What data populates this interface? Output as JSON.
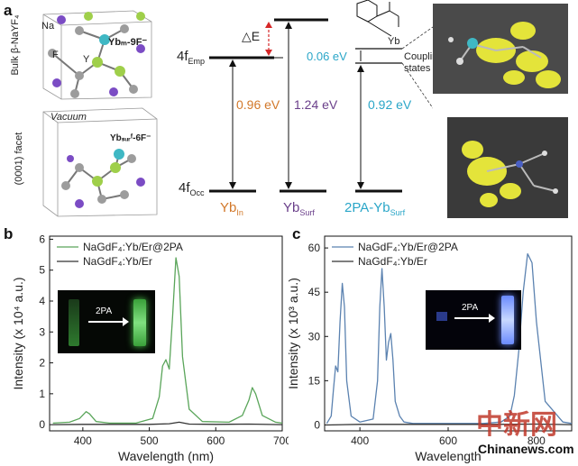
{
  "panel_a": {
    "letter": "a",
    "crystal_top": {
      "side_label": "Bulk β-NaYF₄",
      "na_label": "Na",
      "f_label": "F",
      "y_label": "Y",
      "yb_label": "Ybₘ-9F⁻"
    },
    "crystal_bottom": {
      "side_label": "(0001) facet",
      "vacuum_label": "Vacuum",
      "yb_label": "Ybₛᵤᵣᶠ-6F⁻"
    },
    "levels": {
      "emp_label": "4f",
      "emp_sub": "Emp",
      "occ_label": "4f",
      "occ_sub": "Occ",
      "delta_label": "△E",
      "gap_in": "0.96 eV",
      "gap_surf": "1.24 eV",
      "gap_2pa": "0.92 eV",
      "coupling_gap": "0.06 eV",
      "coupling_label_1": "Coupling",
      "coupling_label_2": "states",
      "molecule_yb": "Yb",
      "x_in": "Yb",
      "x_in_sub": "In",
      "x_surf": "Yb",
      "x_surf_sub": "Surf",
      "x_2pa": "2PA-Yb",
      "x_2pa_sub": "Surf"
    },
    "colors": {
      "in": "#d2782a",
      "surf": "#6a3f8a",
      "pa": "#2aa6c8",
      "delta_arrow": "#d62728"
    }
  },
  "panel_b": {
    "letter": "b",
    "inset_arrow_label": "2PA"
  },
  "panel_c": {
    "letter": "c",
    "inset_arrow_label": "2PA"
  },
  "watermark": {
    "cn": "中新网",
    "url": "Chinanews.com"
  },
  "chart_data": [
    {
      "type": "line",
      "panel": "b",
      "xlabel": "Wavelength (nm)",
      "ylabel": "Intensity (x 10⁴ a.u.)",
      "xlim": [
        350,
        700
      ],
      "ylim": [
        -0.2,
        6.1
      ],
      "xticks": [
        400,
        500,
        600,
        700
      ],
      "yticks": [
        0,
        1,
        2,
        3,
        4,
        5,
        6
      ],
      "legend": "top-left",
      "series": [
        {
          "name": "NaGdF₄:Yb/Er@2PA",
          "color": "#5aa55a",
          "x": [
            355,
            380,
            395,
            405,
            410,
            420,
            440,
            480,
            505,
            515,
            520,
            525,
            530,
            535,
            540,
            545,
            550,
            560,
            580,
            620,
            640,
            650,
            655,
            660,
            670,
            690,
            700
          ],
          "y": [
            0.05,
            0.08,
            0.2,
            0.42,
            0.35,
            0.1,
            0.05,
            0.05,
            0.2,
            0.9,
            1.9,
            2.1,
            1.8,
            3.5,
            5.4,
            4.8,
            2.2,
            0.5,
            0.1,
            0.08,
            0.3,
            0.8,
            1.2,
            1.0,
            0.3,
            0.08,
            0.05
          ]
        },
        {
          "name": "NaGdF₄:Yb/Er",
          "color": "#333333",
          "x": [
            355,
            400,
            450,
            500,
            530,
            545,
            560,
            600,
            650,
            700
          ],
          "y": [
            0.0,
            0.01,
            0.01,
            0.01,
            0.03,
            0.08,
            0.02,
            0.01,
            0.02,
            0.0
          ]
        }
      ]
    },
    {
      "type": "line",
      "panel": "c",
      "xlabel": "Wavelength",
      "ylabel": "Intensity (x 10³ a.u.)",
      "xlim": [
        320,
        880
      ],
      "ylim": [
        -2,
        64
      ],
      "xticks": [
        400,
        600,
        800
      ],
      "yticks": [
        0,
        15,
        30,
        45,
        60
      ],
      "legend": "top-left",
      "series": [
        {
          "name": "NaGdF₄:Yb/Er@2PA",
          "color": "#5b82b0",
          "x": [
            325,
            335,
            340,
            345,
            350,
            355,
            360,
            365,
            370,
            380,
            400,
            430,
            440,
            445,
            450,
            455,
            460,
            465,
            470,
            475,
            480,
            490,
            500,
            520,
            560,
            620,
            680,
            720,
            740,
            750,
            760,
            770,
            780,
            790,
            800,
            820,
            860,
            880
          ],
          "y": [
            0.5,
            3,
            12,
            20,
            18,
            35,
            48,
            40,
            15,
            3,
            1,
            2,
            15,
            40,
            53,
            40,
            22,
            28,
            31,
            22,
            8,
            3,
            1,
            0.5,
            0.5,
            0.5,
            0.5,
            1,
            3,
            10,
            25,
            45,
            58,
            55,
            35,
            8,
            1,
            0.5
          ]
        },
        {
          "name": "NaGdF₄:Yb/Er",
          "color": "#333333",
          "x": [
            325,
            400,
            500,
            600,
            700,
            800,
            880
          ],
          "y": [
            0.0,
            0.2,
            0.2,
            0.2,
            0.2,
            0.3,
            0.1
          ]
        }
      ]
    }
  ]
}
